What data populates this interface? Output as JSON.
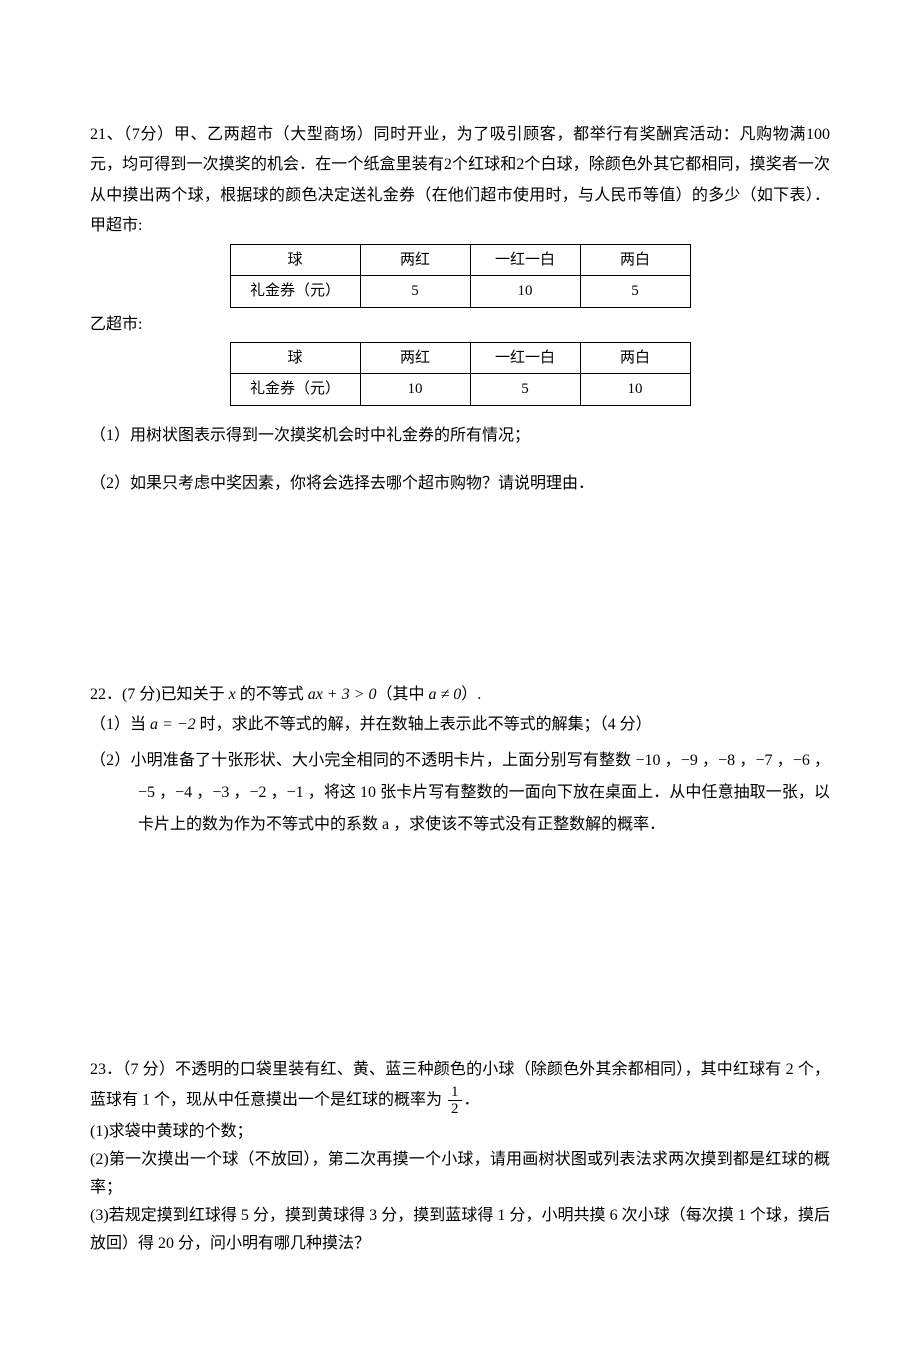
{
  "q21": {
    "intro": "21、（7分）甲、乙两超市（大型商场）同时开业，为了吸引顾客，都举行有奖酬宾活动：凡购物满100元，均可得到一次摸奖的机会．在一个纸盒里装有2个红球和2个白球，除颜色外其它都相同，摸奖者一次从中摸出两个球，根据球的颜色决定送礼金券（在他们超市使用时，与人民币等值）的多少（如下表）．甲超市:",
    "table_headers": [
      "球",
      "两红",
      "一红一白",
      "两白"
    ],
    "table_row_label": "礼金券（元）",
    "jia_values": [
      "5",
      "10",
      "5"
    ],
    "yi_label": "乙超市:",
    "yi_values": [
      "10",
      "5",
      "10"
    ],
    "sub1": "（1）用树状图表示得到一次摸奖机会时中礼金券的所有情况；",
    "sub2": "（2）如果只考虑中奖因素，你将会选择去哪个超市购物？请说明理由．"
  },
  "q22": {
    "intro_a": "22．(7 分)已知关于 ",
    "intro_b": " 的不等式 ",
    "intro_c": "（其中 ",
    "intro_d": "）.",
    "var_x": "x",
    "inequality": "ax + 3 > 0",
    "condition": "a ≠ 0",
    "sub1_a": "（1）当 ",
    "sub1_val": "a = −2",
    "sub1_b": " 时，求此不等式的解，并在数轴上表示此不等式的解集；（4 分）",
    "sub2": "（2）小明准备了十张形状、大小完全相同的不透明卡片，上面分别写有整数 −10 ，−9 ，−8 ，−7 ，−6 ，−5 ，−4 ，−3 ，−2 ，−1 ，将这 10 张卡片写有整数的一面向下放在桌面上．从中任意抽取一张，以卡片上的数为作为不等式中的系数 a ，求使该不等式没有正整数解的概率．"
  },
  "q23": {
    "intro_a": "23．（7 分）不透明的口袋里装有红、黄、蓝三种颜色的小球（除颜色外其余都相同），其中红球有 2 个，蓝球有 1 个，现从中任意摸出一个是红球的概率为 ",
    "intro_b": "．",
    "frac_num": "1",
    "frac_den": "2",
    "sub1": "(1)求袋中黄球的个数；",
    "sub2": "(2)第一次摸出一个球（不放回），第二次再摸一个小球，请用画树状图或列表法求两次摸到都是红球的概率；",
    "sub3": "(3)若规定摸到红球得 5 分，摸到黄球得 3 分，摸到蓝球得 1 分，小明共摸 6 次小球（每次摸 1 个球，摸后放回）得 20 分，问小明有哪几种摸法？"
  }
}
